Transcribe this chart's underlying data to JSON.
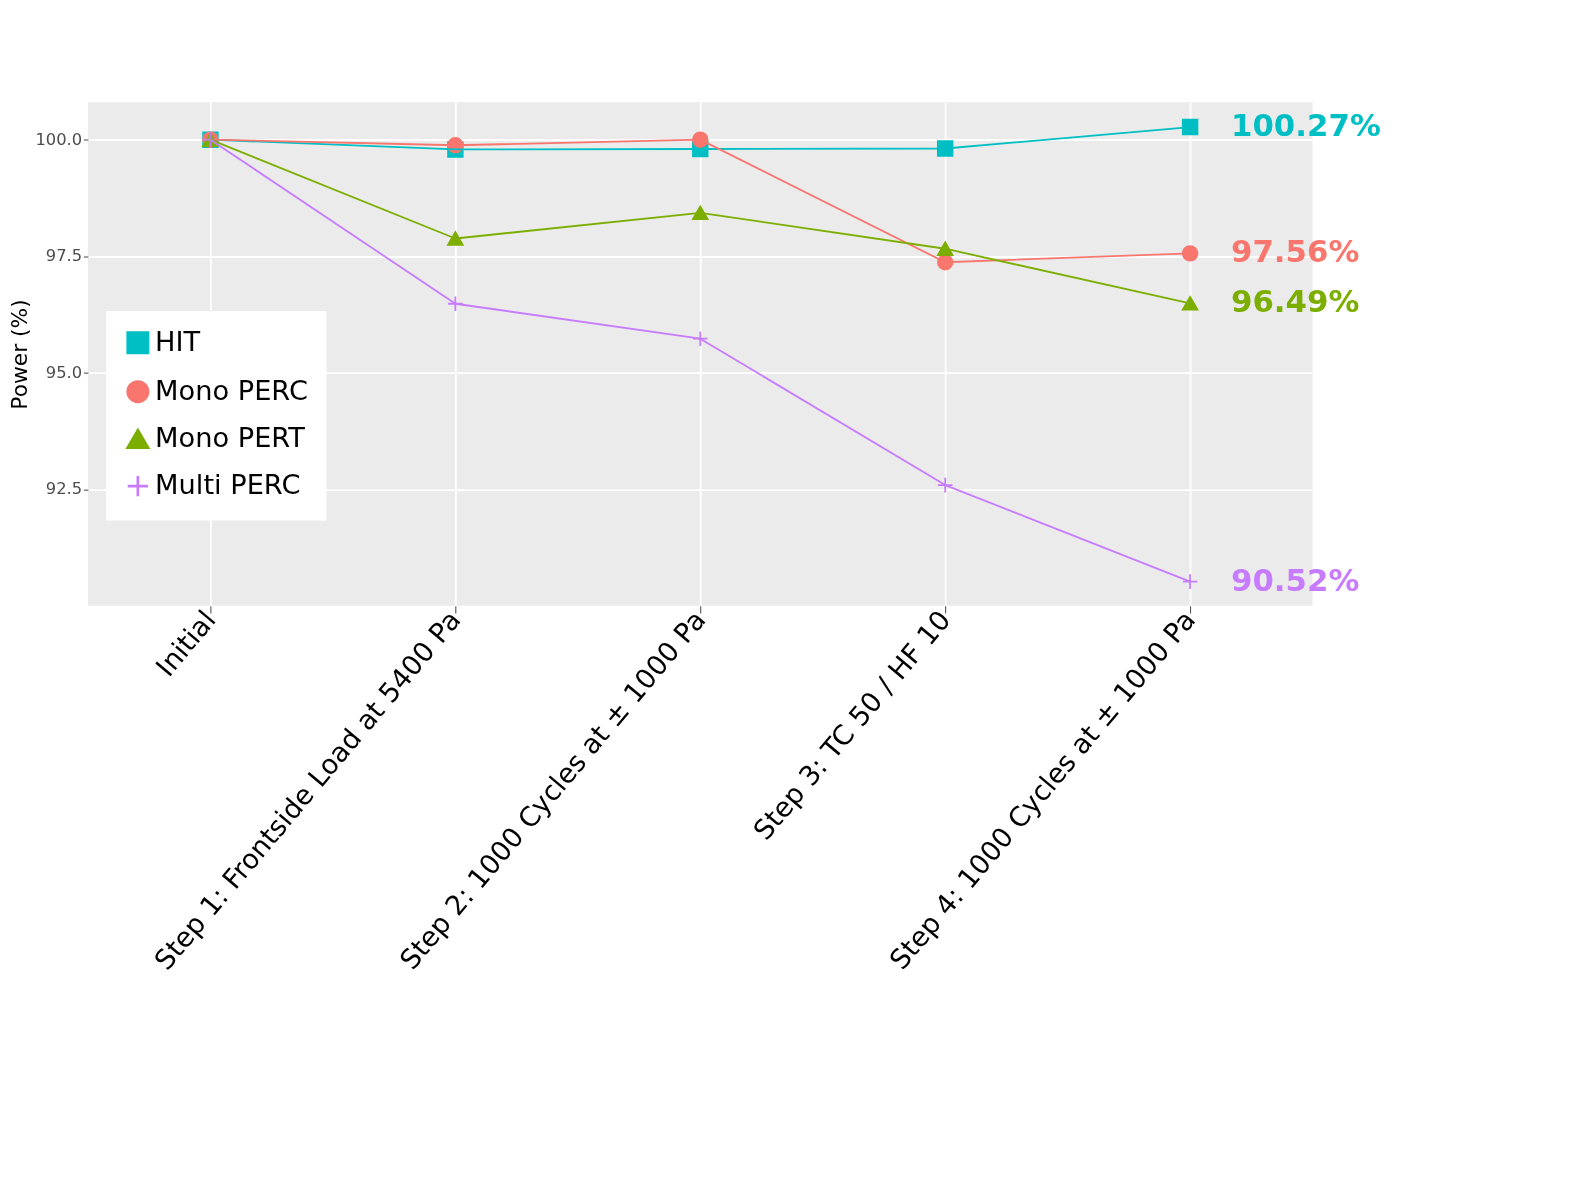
{
  "chart_data": {
    "type": "line",
    "ylabel": "Power (%)",
    "categories": [
      "Initial",
      "Step 1: Frontside Load at 5400 Pa",
      "Step 2: 1000 Cycles at ± 1000 Pa",
      "Step 3: TC 50 / HF 10",
      "Step 4: 1000 Cycles at ± 1000 Pa"
    ],
    "series": [
      {
        "name": "HIT",
        "color": "#00bfc4",
        "marker": "square",
        "values": [
          100.0,
          99.79,
          99.8,
          99.81,
          100.27
        ],
        "value_labels": [
          null,
          null,
          null,
          null,
          "100.27%"
        ]
      },
      {
        "name": "Mono PERC",
        "color": "#f8766d",
        "marker": "circle",
        "values": [
          100.0,
          99.88,
          100.0,
          97.37,
          97.56
        ],
        "value_labels": [
          null,
          null,
          null,
          null,
          "97.56%"
        ]
      },
      {
        "name": "Mono PERT",
        "color": "#7cae00",
        "marker": "triangle",
        "values": [
          100.0,
          97.88,
          98.43,
          97.66,
          96.49
        ],
        "value_labels": [
          null,
          null,
          null,
          null,
          "96.49%"
        ]
      },
      {
        "name": "Multi PERC",
        "color": "#c77cff",
        "marker": "cross",
        "values": [
          100.0,
          96.48,
          95.73,
          92.59,
          90.52
        ],
        "value_labels": [
          null,
          null,
          null,
          null,
          "90.52%"
        ]
      }
    ],
    "ylim": [
      90.0,
      100.8
    ],
    "yticks": [
      {
        "value": 92.5,
        "label": "92.5"
      },
      {
        "value": 95,
        "label": "95.0"
      },
      {
        "value": 97.5,
        "label": "97.5"
      },
      {
        "value": 100,
        "label": "100.0"
      }
    ],
    "grid": true,
    "legend": "left"
  }
}
